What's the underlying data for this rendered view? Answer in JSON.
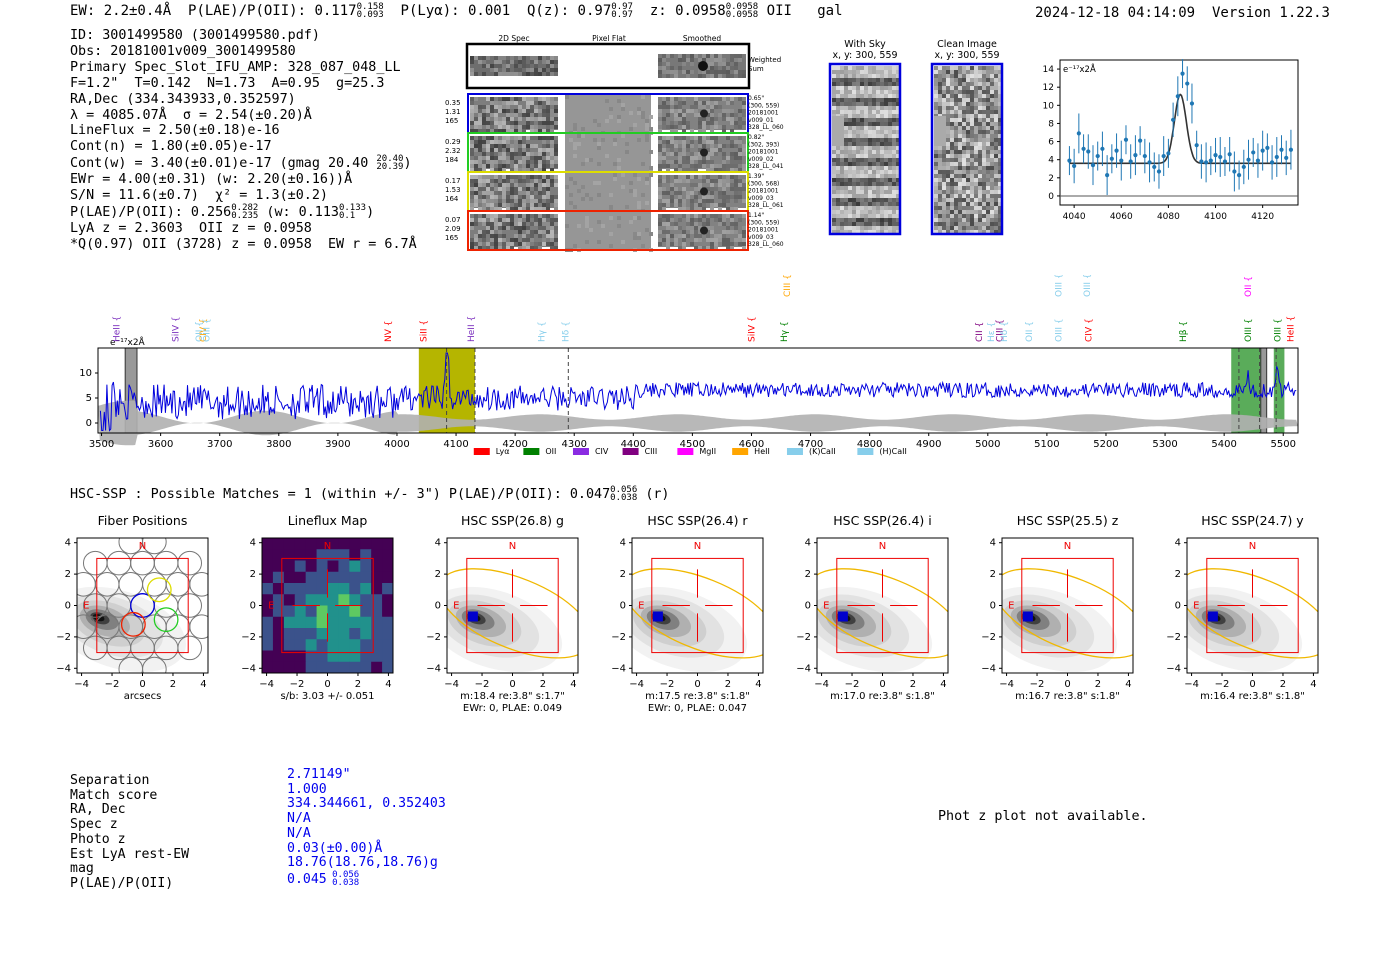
{
  "header": {
    "ew": "EW: 2.2±0.4Å",
    "plae_label": "P(LAE)/P(OII): 0.117",
    "plae_hi": "0.158",
    "plae_lo": "0.093",
    "plya_label": "P(Lyα): 0.001",
    "qz_label": "Q(z): 0.97",
    "qz_hi": "0.97",
    "qz_lo": "0.97",
    "z_label": "z: 0.0958",
    "z_hi": "0.0958",
    "z_lo": "0.0958",
    "line_id": "OII",
    "class": "gal",
    "timestamp": "2024-12-18 04:14:09",
    "version": "Version 1.22.3"
  },
  "info": {
    "id": "ID: 3001499580 (3001499580.pdf)",
    "obs": "Obs: 20181001v009_3001499580",
    "primary": "Primary Spec_Slot_IFU_AMP: 328_087_048_LL",
    "params": "F=1.2\"  T=0.142  N=1.73  A=0.95  g=25.3",
    "radec": "RA,Dec (334.343933,0.352597)",
    "lambda": "λ = 4085.07Å  σ = 2.54(±0.20)Å",
    "lineflux": "LineFlux = 2.50(±0.18)e-16",
    "contn": "Cont(n) = 1.80(±0.05)e-17",
    "contw": "Cont(w) = 3.40(±0.01)e-17 (gmag 20.40",
    "contw_hi": "20.40",
    "contw_lo": "20.39",
    "ewr": "EWr = 4.00(±0.31) (w: 2.20(±0.16))Å",
    "sn": "S/N = 11.6(±0.7)  χ² = 1.3(±0.2)",
    "plae": "P(LAE)/P(OII): 0.256",
    "plae_hi": "0.282",
    "plae_lo": "0.235",
    "plae_w": "(w: 0.113",
    "plae_w_hi": "0.133",
    "plae_w_lo": "0.1",
    "lya_z": "LyA z = 2.3603  OII z = 0.0958",
    "q_line": "*Q(0.97) OII (3728) z = 0.0958  EW r = 6.7Å"
  },
  "cutouts": {
    "col_headers": [
      "2D Spec",
      "Pixel Flat",
      "Smoothed"
    ],
    "weighted_sum": [
      "Weighted",
      "Sum"
    ],
    "rows": [
      {
        "left": [
          "0.35",
          "1.31",
          "165"
        ],
        "right": [
          "0.65\"",
          "(300, 559)",
          "20181001",
          "v009_01",
          "328_LL_060"
        ],
        "color": "#0000dd"
      },
      {
        "left": [
          "0.29",
          "2.32",
          "184"
        ],
        "right": [
          "0.82\"",
          "(302, 393)",
          "20181001",
          "v009_02",
          "328_LL_041"
        ],
        "color": "#22cc22"
      },
      {
        "left": [
          "0.17",
          "1.53",
          "164"
        ],
        "right": [
          "1.39\"",
          "(300, 568)",
          "20181001",
          "v009_03",
          "328_LL_061"
        ],
        "color": "#dddd00"
      },
      {
        "left": [
          "0.07",
          "2.09",
          "165"
        ],
        "right": [
          "1.14\"",
          "(300, 559)",
          "20181001",
          "v009_03",
          "328_LL_060"
        ],
        "color": "#ee2200"
      }
    ],
    "sky_title": [
      "With Sky",
      "x, y: 300, 559"
    ],
    "clean_title": [
      "Clean Image",
      "x, y: 300, 559"
    ]
  },
  "zoom_chart": {
    "type": "scatter",
    "ylabel": "e⁻¹⁷x2Å",
    "xlim": [
      4034,
      4135
    ],
    "ylim": [
      -1,
      15
    ],
    "xticks": [
      "4040",
      "4060",
      "4080",
      "4100",
      "4120"
    ],
    "yticks": [
      "0",
      "2",
      "4",
      "6",
      "8",
      "10",
      "12",
      "14"
    ]
  },
  "chart_data": [
    {
      "type": "scatter",
      "title": "",
      "ylabel": "e⁻¹⁷x2Å",
      "xlim": [
        4034,
        4135
      ],
      "ylim": [
        -1,
        15
      ],
      "x": [
        4038,
        4040,
        4042,
        4044,
        4046,
        4048,
        4050,
        4052,
        4054,
        4056,
        4058,
        4060,
        4062,
        4064,
        4066,
        4068,
        4070,
        4072,
        4074,
        4076,
        4078,
        4080,
        4082,
        4084,
        4086,
        4088,
        4090,
        4092,
        4094,
        4096,
        4098,
        4100,
        4102,
        4104,
        4106,
        4108,
        4110,
        4112,
        4114,
        4116,
        4118,
        4120,
        4122,
        4124,
        4126,
        4128,
        4130,
        4132
      ],
      "y": [
        3.9,
        3.3,
        6.9,
        5.2,
        4.9,
        3.4,
        4.4,
        5.2,
        2.3,
        4.1,
        5.0,
        3.9,
        6.2,
        3.8,
        4.5,
        6.1,
        4.4,
        3.7,
        3.2,
        2.7,
        4.4,
        4.7,
        8.4,
        11.0,
        13.5,
        12.4,
        10.2,
        5.6,
        3.8,
        3.7,
        3.9,
        4.5,
        4.3,
        3.8,
        4.6,
        2.7,
        2.3,
        3.2,
        4.0,
        4.8,
        3.9,
        5.0,
        5.3,
        3.7,
        4.3,
        5.1,
        4.2,
        5.1
      ],
      "fit": {
        "continuum": 3.6,
        "center": 4085.07,
        "sigma": 2.54,
        "peak": 11.2
      }
    },
    {
      "type": "line",
      "title": "",
      "ylabel": "e⁻¹⁷x2Å",
      "xlim": [
        3494,
        5525
      ],
      "ylim": [
        -2,
        15
      ],
      "xticks": [
        "3500",
        "3600",
        "3700",
        "3800",
        "3900",
        "4000",
        "4100",
        "4200",
        "4300",
        "4400",
        "4500",
        "4600",
        "4700",
        "4800",
        "4900",
        "5000",
        "5100",
        "5200",
        "5300",
        "5400",
        "5500"
      ],
      "yticks": [
        "0",
        "5",
        "10"
      ],
      "highlights": [
        {
          "from": 4037,
          "to": 4132,
          "color": "#b5b500",
          "label": "OII"
        },
        {
          "from": 5412,
          "to": 5462,
          "color": "#5aac5a",
          "label": "OIII"
        },
        {
          "from": 5484,
          "to": 5502,
          "color": "#5aac5a",
          "label": "OIII"
        }
      ],
      "dashed_lines": [
        4084,
        4132,
        4290,
        5425,
        5460,
        5488
      ],
      "line_labels": [
        {
          "label": "HeII",
          "x": 3525,
          "color": "#7b2fbe",
          "level": 1
        },
        {
          "label": "SiIV",
          "x": 3625,
          "color": "#7b2fbe",
          "level": 1
        },
        {
          "label": "OII",
          "x": 3665,
          "color": "#87ceeb",
          "level": 1
        },
        {
          "label": "CIV",
          "x": 3672,
          "color": "#ffa500",
          "level": 1
        },
        {
          "label": "OIII",
          "x": 3678,
          "color": "#87ceeb",
          "level": 1
        },
        {
          "label": "NV",
          "x": 3985,
          "color": "#ff0000",
          "level": 1
        },
        {
          "label": "SiII",
          "x": 4045,
          "color": "#ff0000",
          "level": 1
        },
        {
          "label": "HeII",
          "x": 4125,
          "color": "#7b2fbe",
          "level": 1
        },
        {
          "label": "Hγ",
          "x": 4245,
          "color": "#87ceeb",
          "level": 1
        },
        {
          "label": "Hδ",
          "x": 4285,
          "color": "#87ceeb",
          "level": 1
        },
        {
          "label": "SiIV",
          "x": 4600,
          "color": "#ff0000",
          "level": 1
        },
        {
          "label": "Hγ",
          "x": 4655,
          "color": "#008000",
          "level": 1
        },
        {
          "label": "CIII",
          "x": 4660,
          "color": "#ffa500",
          "level": 2
        },
        {
          "label": "CII",
          "x": 4985,
          "color": "#800080",
          "level": 1
        },
        {
          "label": "Hε",
          "x": 5005,
          "color": "#87ceeb",
          "level": 1
        },
        {
          "label": "CIII",
          "x": 5020,
          "color": "#800080",
          "level": 1
        },
        {
          "label": "Hδ",
          "x": 5027,
          "color": "#87ceeb",
          "level": 1
        },
        {
          "label": "OII",
          "x": 5070,
          "color": "#87ceeb",
          "level": 1
        },
        {
          "label": "OIII",
          "x": 5120,
          "color": "#87ceeb",
          "level": 1
        },
        {
          "label": "CIV",
          "x": 5170,
          "color": "#ff0000",
          "level": 1
        },
        {
          "label": "OIII",
          "x": 5120,
          "color": "#87ceeb",
          "level": 2
        },
        {
          "label": "OIII",
          "x": 5168,
          "color": "#87ceeb",
          "level": 2
        },
        {
          "label": "Hβ",
          "x": 5330,
          "color": "#008000",
          "level": 1
        },
        {
          "label": "OIII",
          "x": 5440,
          "color": "#008000",
          "level": 1
        },
        {
          "label": "OII",
          "x": 5440,
          "color": "#ff00ff",
          "level": 2
        },
        {
          "label": "OIII",
          "x": 5490,
          "color": "#008000",
          "level": 1
        },
        {
          "label": "HeII",
          "x": 5512,
          "color": "#ff0000",
          "level": 1
        }
      ],
      "legend": [
        {
          "label": "Lyα",
          "color": "#ff0000"
        },
        {
          "label": "OII",
          "color": "#008000"
        },
        {
          "label": "CIV",
          "color": "#8a2be2"
        },
        {
          "label": "CIII",
          "color": "#800080"
        },
        {
          "label": "MgII",
          "color": "#ff00ff"
        },
        {
          "label": "HeII",
          "color": "#ffa500"
        },
        {
          "label": "(K)CaII",
          "color": "#87ceeb"
        },
        {
          "label": "(H)CaII",
          "color": "#87ceeb"
        }
      ]
    }
  ],
  "hsc": {
    "title_prefix": "HSC-SSP : Possible Matches = 1 (within +/- 3\")  P(LAE)/P(OII): 0.047",
    "title_hi": "0.056",
    "title_lo": "0.038",
    "title_suffix": "(r)",
    "panels": [
      {
        "title": "Fiber Positions",
        "xlabel": "arcsecs",
        "sub": "",
        "sub2": "",
        "type": "fiber"
      },
      {
        "title": "Lineflux Map",
        "xlabel": "s/b: 3.03 +/- 0.051",
        "sub": "",
        "sub2": "",
        "type": "flux"
      },
      {
        "title": "HSC SSP(26.8) g",
        "xlabel": "m:18.4  re:3.8\"  s:1.7\"",
        "sub": "EWr: 0, PLAE: 0.049",
        "type": "img"
      },
      {
        "title": "HSC SSP(26.4) r",
        "xlabel": "m:17.5  re:3.8\"  s:1.8\"",
        "sub": "EWr: 0, PLAE: 0.047",
        "type": "img"
      },
      {
        "title": "HSC SSP(26.4) i",
        "xlabel": "m:17.0  re:3.8\"  s:1.8\"",
        "sub": "",
        "type": "img"
      },
      {
        "title": "HSC SSP(25.5) z",
        "xlabel": "m:16.7  re:3.8\"  s:1.8\"",
        "sub": "",
        "type": "img"
      },
      {
        "title": "HSC SSP(24.7) y",
        "xlabel": "m:16.4  re:3.8\"  s:1.8\"",
        "sub": "",
        "type": "img"
      }
    ],
    "ticks": [
      "−4",
      "−2",
      "0",
      "2",
      "4"
    ],
    "north": "N",
    "east": "E"
  },
  "match": {
    "labels": [
      "Separation",
      "Match score",
      "RA, Dec",
      "Spec z",
      "Photo z",
      "Est LyA rest-EW",
      "mag",
      "P(LAE)/P(OII)"
    ],
    "values": [
      "2.71149\"",
      "1.000",
      "334.344661, 0.352403",
      "N/A",
      "N/A",
      "0.03(±0.00)Å",
      "18.76(18.76,18.76)g",
      "0.045"
    ],
    "plae_hi": "0.056",
    "plae_lo": "0.038",
    "photz_note": "Phot z plot not available."
  },
  "colors": {
    "spectrum": "#0000dd",
    "gray": "#b0b0b0",
    "red": "#ee0000",
    "ellipse": "#f0b800",
    "accent_blue": "#0000ee"
  }
}
